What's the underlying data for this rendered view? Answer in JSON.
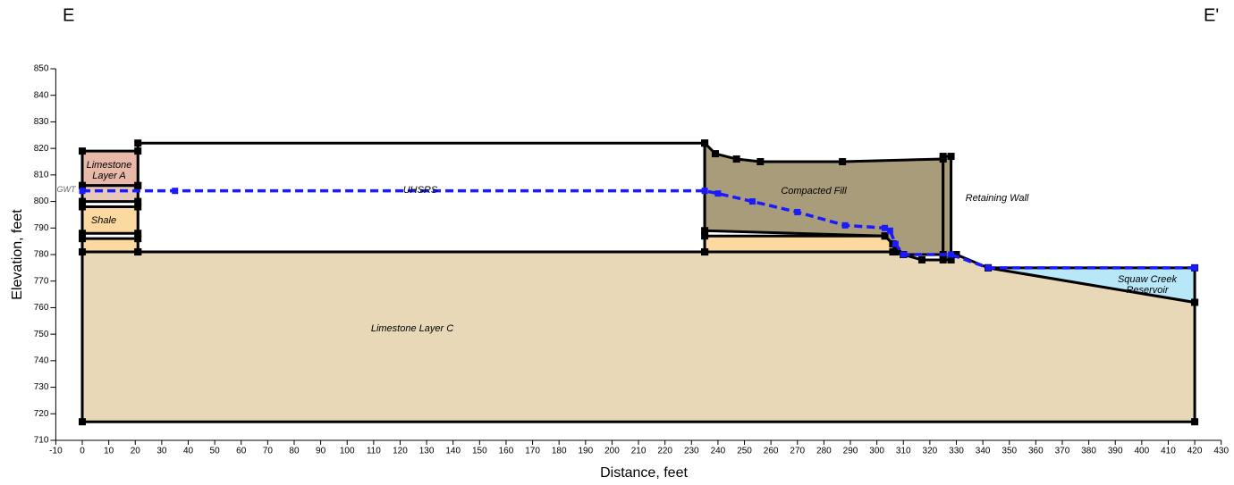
{
  "chart_data": {
    "type": "cross-section",
    "section_labels": [
      "E",
      "E'"
    ],
    "xlabel": "Distance, feet",
    "ylabel": "Elevation, feet",
    "xlim": [
      -10,
      430
    ],
    "ylim": [
      710,
      850
    ],
    "xticks": [
      -10,
      0,
      10,
      20,
      30,
      40,
      50,
      60,
      70,
      80,
      90,
      100,
      110,
      120,
      130,
      140,
      150,
      160,
      170,
      180,
      190,
      200,
      210,
      220,
      230,
      240,
      250,
      260,
      270,
      280,
      290,
      300,
      310,
      320,
      330,
      340,
      350,
      360,
      370,
      380,
      390,
      400,
      410,
      420,
      430
    ],
    "yticks": [
      710,
      720,
      730,
      740,
      750,
      760,
      770,
      780,
      790,
      800,
      810,
      820,
      830,
      840,
      850
    ],
    "regions": [
      {
        "color": "#e8d8b8",
        "x": [
          0,
          235,
          306,
          310,
          317,
          328,
          330,
          342,
          420,
          420,
          0
        ],
        "y": [
          781,
          781,
          781,
          780,
          778,
          778,
          780,
          775,
          762,
          717,
          717
        ]
      },
      {
        "color": "#ffffff",
        "x": [
          21,
          235,
          235,
          21
        ],
        "y": [
          822,
          822,
          781,
          781
        ]
      },
      {
        "color": "#e8b8a8",
        "x": [
          0,
          21,
          21,
          0
        ],
        "y": [
          819,
          819,
          806,
          806
        ]
      },
      {
        "color": "#e8c8b8",
        "x": [
          0,
          21,
          21,
          0
        ],
        "y": [
          806,
          806,
          800,
          800
        ]
      },
      {
        "color": "#fcd9a0",
        "x": [
          0,
          21,
          21,
          0
        ],
        "y": [
          798,
          798,
          788,
          788
        ]
      },
      {
        "color": "#fcd9a0",
        "x": [
          0,
          21,
          21,
          0
        ],
        "y": [
          786,
          786,
          781,
          781
        ]
      },
      {
        "color": "#a89c7a",
        "x": [
          235,
          239,
          247,
          256,
          287,
          325,
          325,
          310,
          306,
          303,
          235
        ],
        "y": [
          822,
          818,
          816,
          815,
          815,
          816,
          780,
          780,
          784,
          787,
          789
        ]
      },
      {
        "color": "#fcd9a0",
        "x": [
          235,
          303,
          306,
          307,
          235
        ],
        "y": [
          787,
          787,
          784,
          781,
          781
        ]
      },
      {
        "color": "#a89c7a",
        "x": [
          325,
          328,
          328,
          325
        ],
        "y": [
          817,
          817,
          778,
          778
        ]
      },
      {
        "color": "#b8e8f8",
        "x": [
          342,
          420,
          420
        ],
        "y": [
          775,
          775,
          762
        ]
      }
    ],
    "gwt": {
      "color": "#1a1aff",
      "x": [
        0,
        35,
        235,
        240,
        253,
        270,
        288,
        303,
        305,
        307,
        310,
        328,
        342,
        420
      ],
      "y": [
        804,
        804,
        804,
        803,
        800,
        796,
        791,
        790,
        789,
        784,
        780,
        780,
        775,
        775
      ]
    },
    "labels": [
      [
        "Limestone",
        "Layer A"
      ],
      [
        "Shale"
      ],
      [
        "UHSRS"
      ],
      [
        "Compacted Fill"
      ],
      [
        "Retaining Wall"
      ],
      [
        "Squaw Creek",
        "Reservoir"
      ],
      [
        "Limestone Layer C"
      ],
      [
        "GWT"
      ]
    ]
  }
}
